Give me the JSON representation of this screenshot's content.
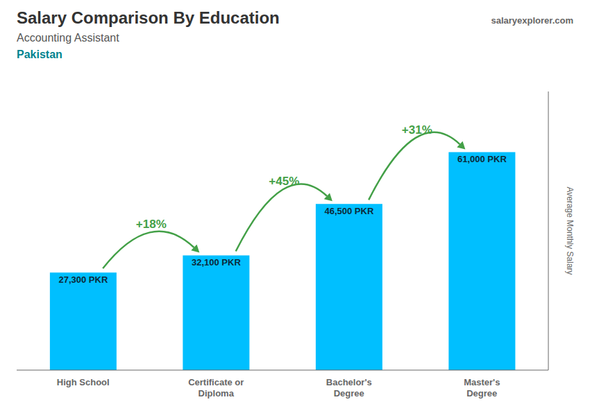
{
  "chart_data": {
    "type": "bar",
    "title": "Salary Comparison By Education",
    "subtitle": "Accounting Assistant",
    "ylabel": "Average Monthly Salary",
    "categories": [
      "High School",
      "Certificate or\nDiploma",
      "Bachelor's\nDegree",
      "Master's\nDegree"
    ],
    "values": [
      27300,
      32100,
      46500,
      61000
    ],
    "value_labels": [
      "27,300 PKR",
      "32,100 PKR",
      "46,500 PKR",
      "61,000 PKR"
    ],
    "color": "#00BFFF",
    "ylim": [
      0,
      78000
    ],
    "tick_labels": "x",
    "grid": false,
    "data_labels": true,
    "annotations": [
      {
        "text": "Pakistan"
      },
      {
        "text": "salaryexplorer.com"
      },
      {
        "text": "+18%",
        "from": "High School",
        "to": "Certificate or\nDiploma"
      },
      {
        "text": "+45%",
        "from": "Certificate or\nDiploma",
        "to": "Bachelor's\nDegree"
      },
      {
        "text": "+31%",
        "from": "Bachelor's\nDegree",
        "to": "Master's\nDegree"
      }
    ]
  }
}
